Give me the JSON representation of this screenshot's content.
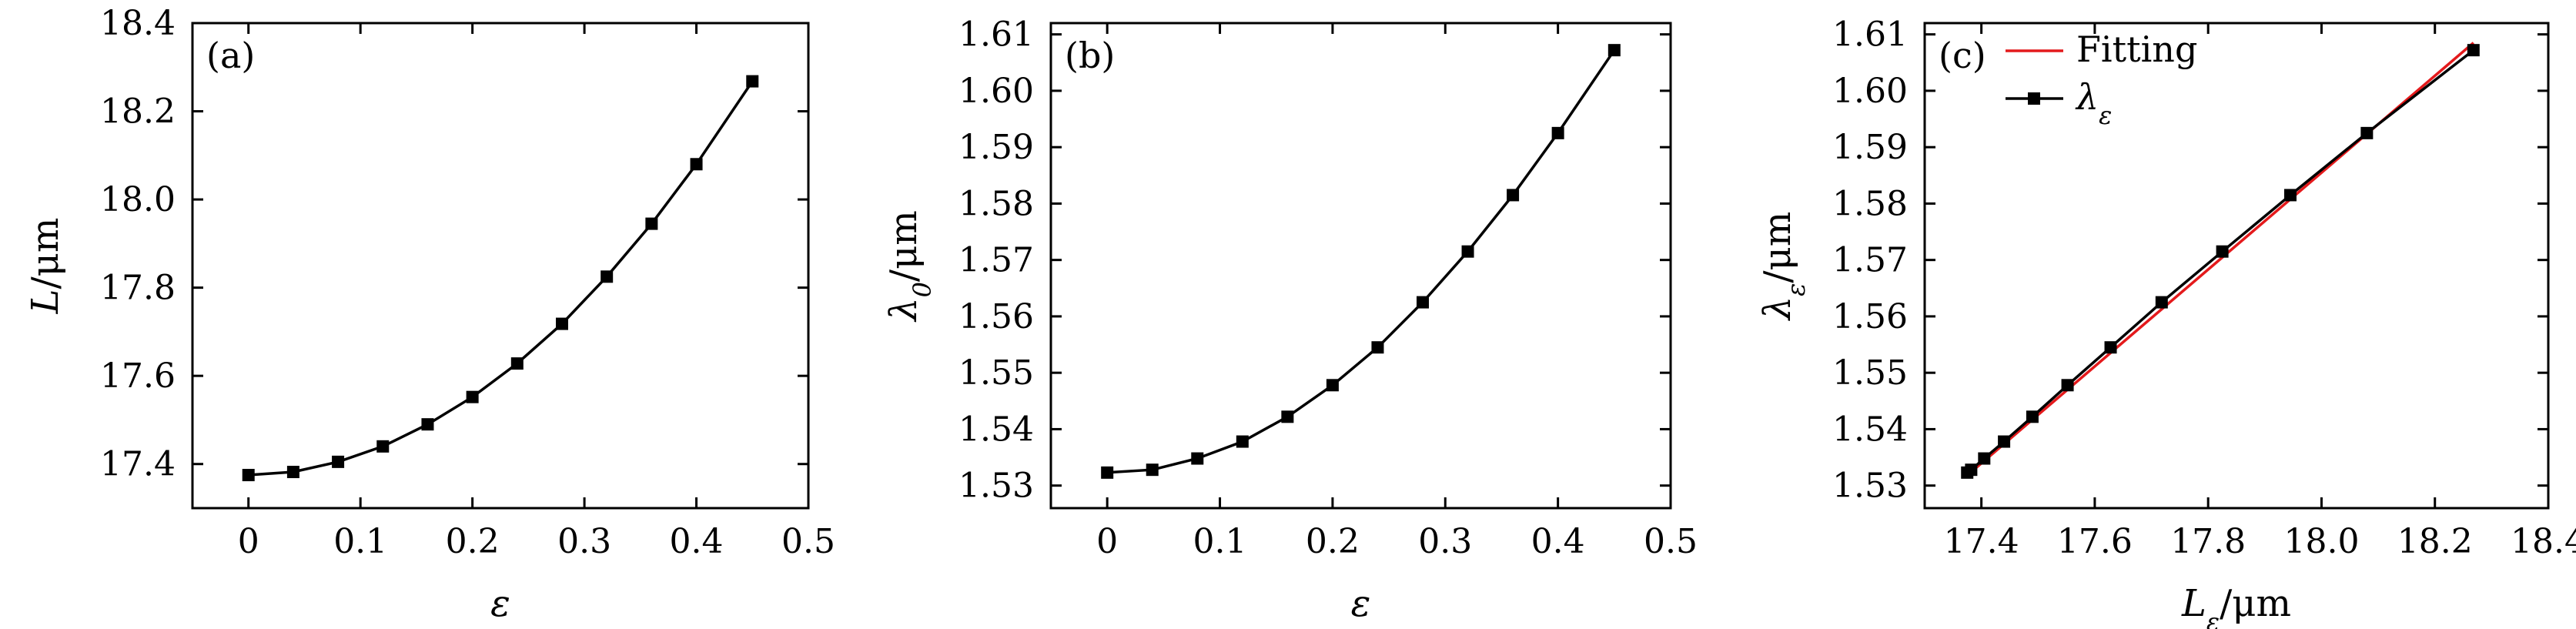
{
  "chart_data": [
    {
      "type": "line",
      "panel_label": "(a)",
      "xlabel": "ε",
      "ylabel": "L/μm",
      "xlim": [
        -0.05,
        0.5
      ],
      "ylim": [
        17.3,
        18.4
      ],
      "xticks": [
        0,
        0.1,
        0.2,
        0.3,
        0.4,
        0.5
      ],
      "xtick_labels": [
        "0",
        "0.1",
        "0.2",
        "0.3",
        "0.4",
        "0.5"
      ],
      "yticks": [
        17.4,
        17.6,
        17.8,
        18.0,
        18.2,
        18.4
      ],
      "ytick_labels": [
        "17.4",
        "17.6",
        "17.8",
        "18.0",
        "18.2",
        "18.4"
      ],
      "grid": false,
      "series": [
        {
          "color": "#000000",
          "marker": "square",
          "x": [
            0,
            0.04,
            0.08,
            0.12,
            0.16,
            0.2,
            0.24,
            0.28,
            0.32,
            0.36,
            0.4,
            0.45
          ],
          "y": [
            17.375,
            17.382,
            17.405,
            17.44,
            17.49,
            17.552,
            17.628,
            17.718,
            17.825,
            17.945,
            18.08,
            18.268
          ]
        }
      ]
    },
    {
      "type": "line",
      "panel_label": "(b)",
      "xlabel": "ε",
      "ylabel": "λ0/μm",
      "ylabel_main": "λ",
      "ylabel_sub": "0",
      "ylabel_unit": "/μm",
      "xlim": [
        -0.05,
        0.5
      ],
      "ylim": [
        1.526,
        1.612
      ],
      "xticks": [
        0,
        0.1,
        0.2,
        0.3,
        0.4,
        0.5
      ],
      "xtick_labels": [
        "0",
        "0.1",
        "0.2",
        "0.3",
        "0.4",
        "0.5"
      ],
      "yticks": [
        1.53,
        1.54,
        1.55,
        1.56,
        1.57,
        1.58,
        1.59,
        1.6,
        1.61
      ],
      "ytick_labels": [
        "1.53",
        "1.54",
        "1.55",
        "1.56",
        "1.57",
        "1.58",
        "1.59",
        "1.60",
        "1.61"
      ],
      "grid": false,
      "series": [
        {
          "color": "#000000",
          "marker": "square",
          "x": [
            0,
            0.04,
            0.08,
            0.12,
            0.16,
            0.2,
            0.24,
            0.28,
            0.32,
            0.36,
            0.4,
            0.45
          ],
          "y": [
            1.5323,
            1.5328,
            1.5348,
            1.5378,
            1.5422,
            1.5478,
            1.5545,
            1.5625,
            1.5715,
            1.5815,
            1.5925,
            1.6072
          ]
        }
      ]
    },
    {
      "type": "line",
      "panel_label": "(c)",
      "xlabel": "Lε/μm",
      "xlabel_main": "L",
      "xlabel_sub": "ε",
      "xlabel_unit": "/μm",
      "ylabel": "λε/μm",
      "ylabel_main": "λ",
      "ylabel_sub": "ε",
      "ylabel_unit": "/μm",
      "xlim": [
        17.3,
        18.4
      ],
      "ylim": [
        1.526,
        1.612
      ],
      "xticks": [
        17.4,
        17.6,
        17.8,
        18.0,
        18.2,
        18.4
      ],
      "xtick_labels": [
        "17.4",
        "17.6",
        "17.8",
        "18.0",
        "18.2",
        "18.4"
      ],
      "yticks": [
        1.53,
        1.54,
        1.55,
        1.56,
        1.57,
        1.58,
        1.59,
        1.6,
        1.61
      ],
      "ytick_labels": [
        "1.53",
        "1.54",
        "1.55",
        "1.56",
        "1.57",
        "1.58",
        "1.59",
        "1.60",
        "1.61"
      ],
      "grid": false,
      "legend_position": "top-left",
      "series": [
        {
          "name": "Fitting",
          "color": "#e41a1c",
          "marker": "none",
          "x": [
            17.375,
            18.268
          ],
          "y": [
            1.5318,
            1.6085
          ]
        },
        {
          "name": "λε",
          "name_main": "λ",
          "name_sub": "ε",
          "color": "#000000",
          "marker": "square",
          "x": [
            17.375,
            17.382,
            17.405,
            17.44,
            17.49,
            17.552,
            17.628,
            17.718,
            17.825,
            17.945,
            18.08,
            18.268
          ],
          "y": [
            1.5323,
            1.5328,
            1.5348,
            1.5378,
            1.5422,
            1.5478,
            1.5545,
            1.5625,
            1.5715,
            1.5815,
            1.5925,
            1.6072
          ]
        }
      ]
    }
  ]
}
